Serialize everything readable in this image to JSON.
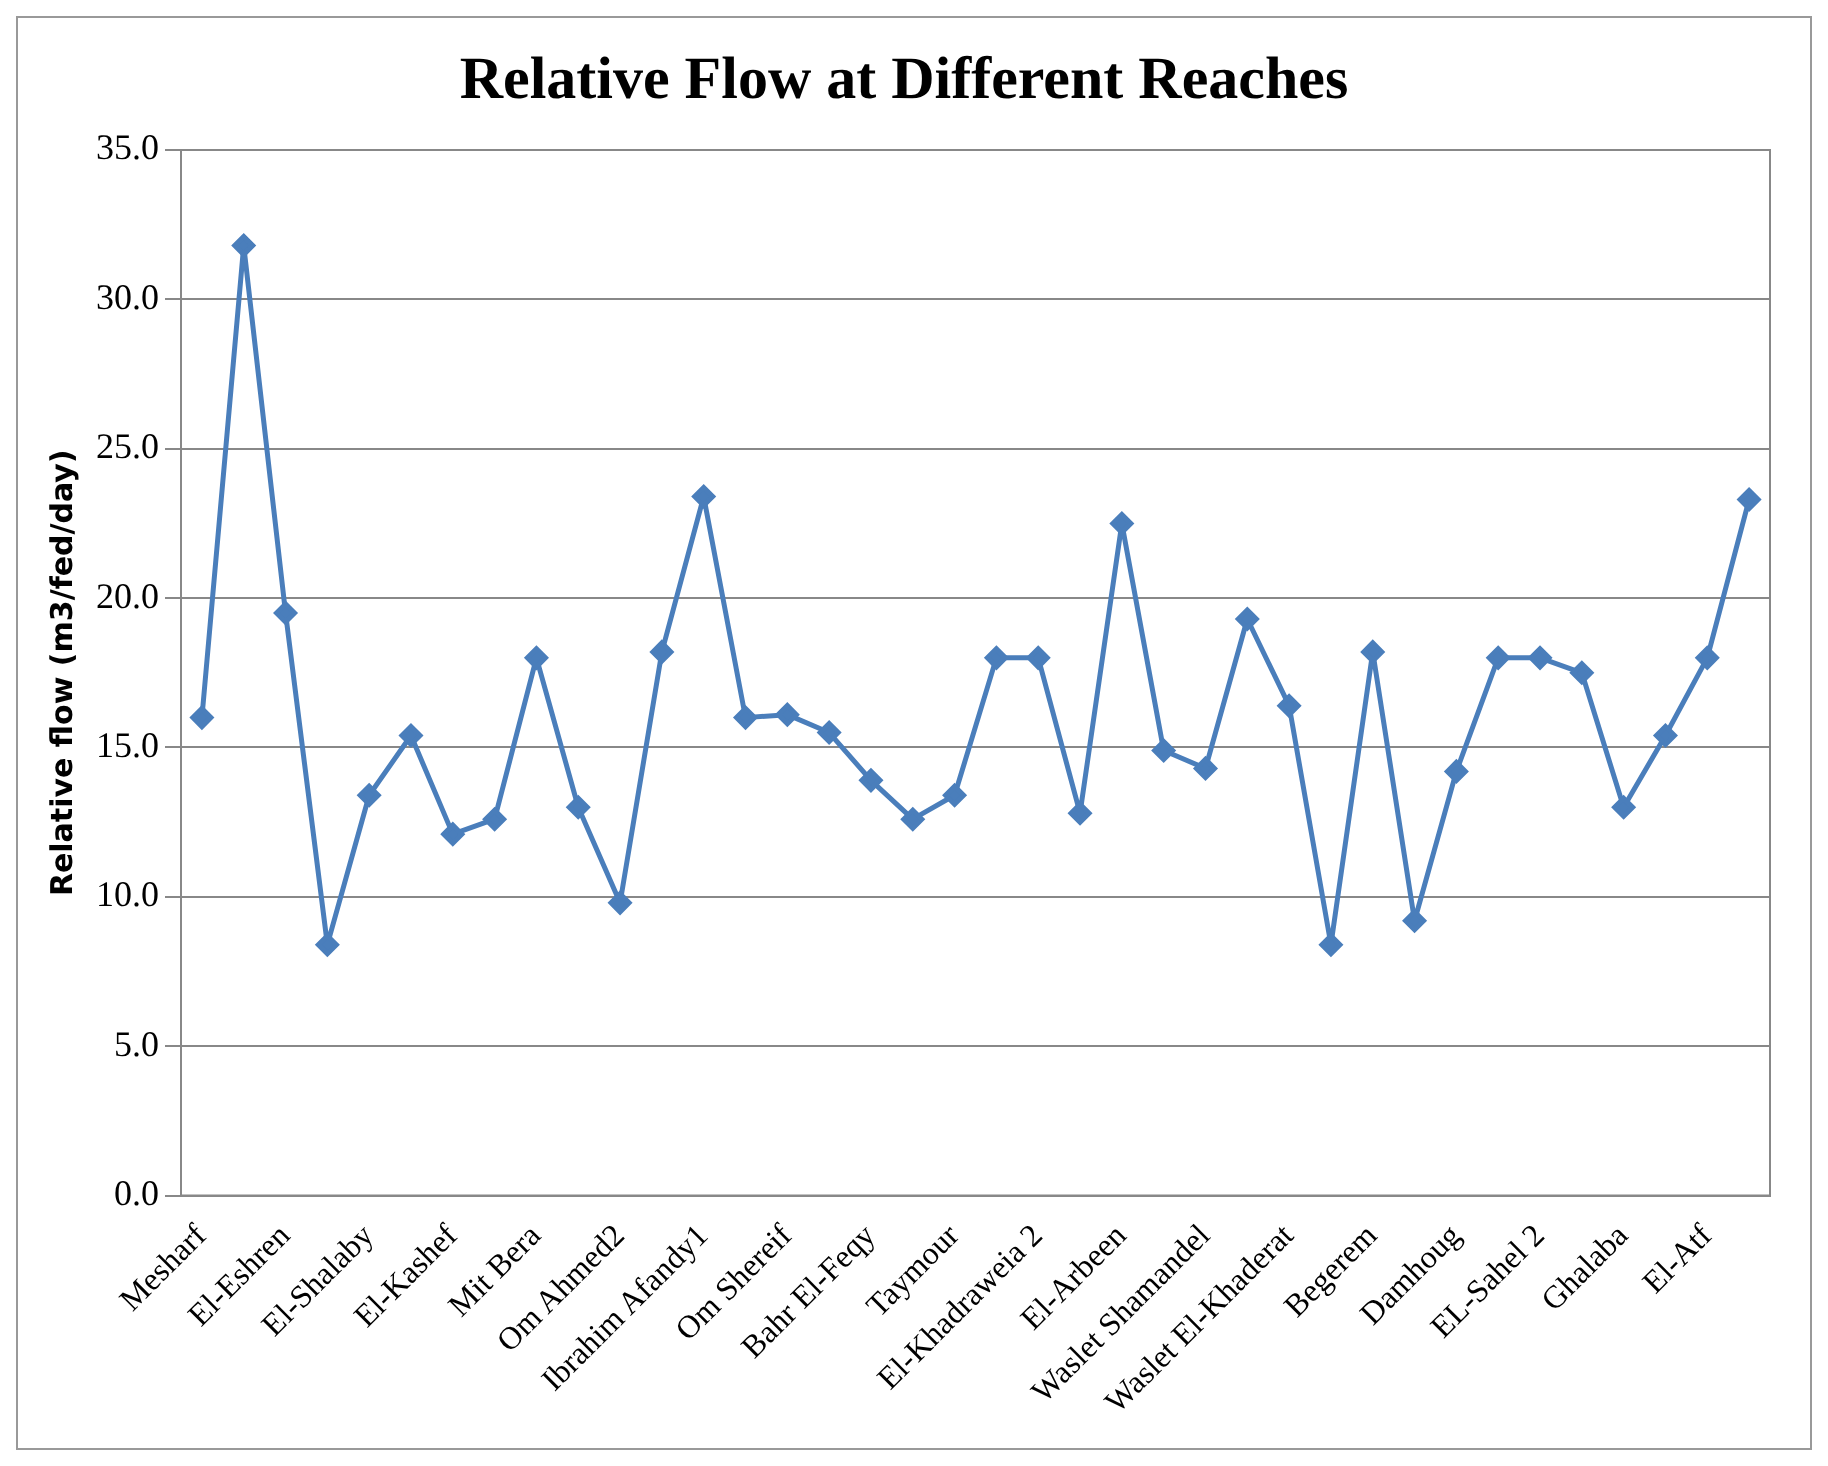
{
  "chart_data": {
    "type": "line",
    "title": "Relative Flow at Different Reaches",
    "ylabel": "Relative flow (m3/fed/day)",
    "categories": [
      "Mesharf",
      null,
      "El-Eshren",
      null,
      "El-Shalaby",
      null,
      "El-Kashef",
      null,
      "Mit Bera",
      null,
      "Om Ahmed2",
      null,
      "Ibrahim Afandy1",
      null,
      "Om Shereif",
      null,
      "Bahr El-Feqy",
      null,
      "Taymour",
      null,
      "El-Khadraweia 2",
      null,
      "El-Arbeen",
      null,
      "Waslet Shamandel",
      null,
      "Waslet El-Khaderat",
      null,
      "Begerem",
      null,
      "Damhoug",
      null,
      "EL-Sahel 2",
      null,
      "Ghalaba",
      null,
      "El-Atf",
      null
    ],
    "series": [
      {
        "color": "#4a7ebb",
        "values": [
          16.0,
          31.8,
          19.5,
          8.4,
          13.4,
          15.4,
          12.1,
          12.6,
          18.0,
          13.0,
          9.8,
          18.2,
          23.4,
          16.0,
          16.1,
          15.5,
          13.9,
          12.6,
          13.4,
          18.0,
          18.0,
          12.8,
          22.5,
          14.9,
          14.3,
          19.3,
          16.4,
          8.4,
          18.2,
          9.2,
          14.2,
          18.0,
          18.0,
          17.5,
          13.0,
          15.4,
          18.0,
          23.3
        ]
      }
    ],
    "ylim": [
      0,
      35
    ],
    "yticks": [
      {
        "value": 0,
        "label": "0.0"
      },
      {
        "value": 5,
        "label": "5.0"
      },
      {
        "value": 10,
        "label": "10.0"
      },
      {
        "value": 15,
        "label": "15.0"
      },
      {
        "value": 20,
        "label": "20.0"
      },
      {
        "value": 25,
        "label": "25.0"
      },
      {
        "value": 30,
        "label": "30.0"
      },
      {
        "value": 35,
        "label": "35.0"
      }
    ],
    "grid": "y",
    "legend": false,
    "marker": "diamond",
    "line_style": "solid"
  }
}
